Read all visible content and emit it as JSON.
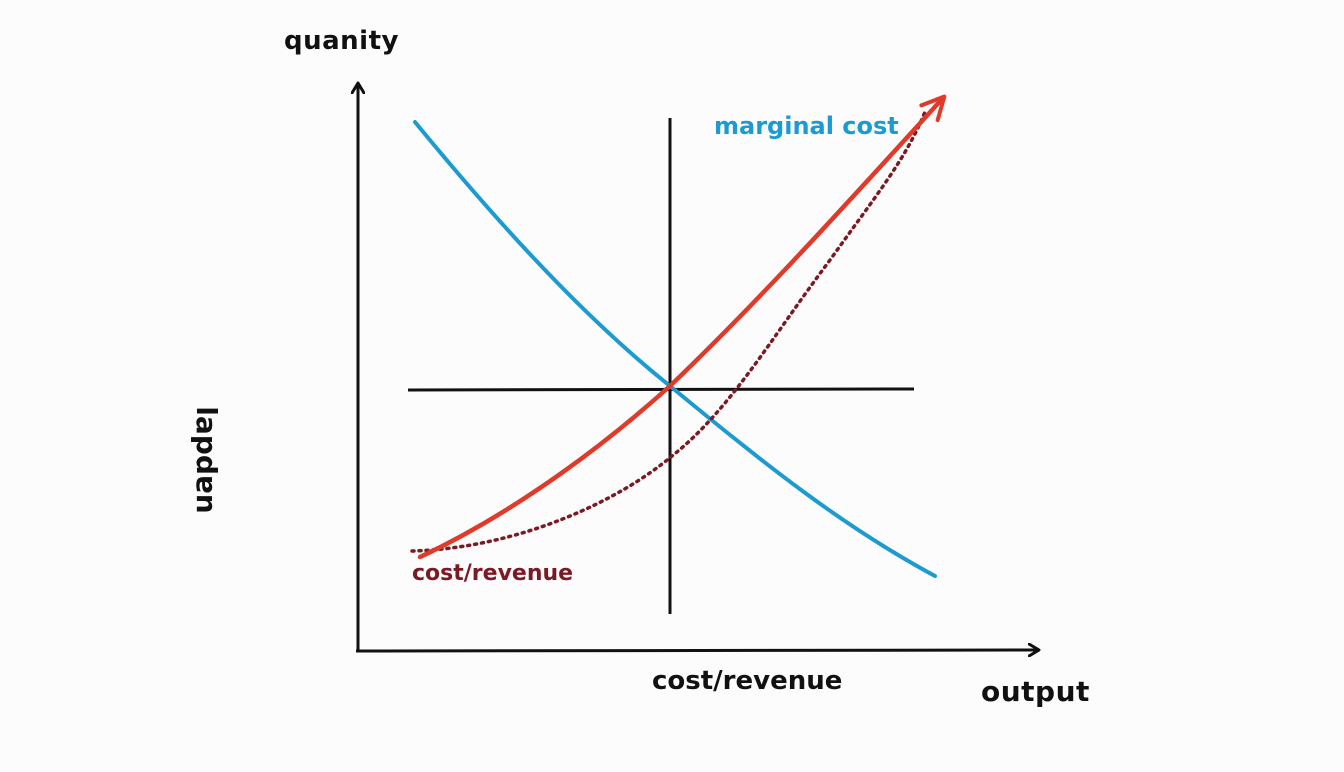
{
  "diagram": {
    "y_axis_title": "quanity",
    "x_axis_title": "output",
    "center_axis_label": "cost/revenue",
    "rotated_label": "lapdɐn",
    "series": [
      {
        "label": "marginal cost",
        "color": "#1b9bd1"
      },
      {
        "label": "cost/revenue",
        "color": "#7b1a24"
      }
    ],
    "curve_colors": {
      "marginal_cost": "#1b9bd1",
      "rising": "#e03a2a",
      "dotted": "#7b1a24",
      "axes": "#111111"
    }
  }
}
